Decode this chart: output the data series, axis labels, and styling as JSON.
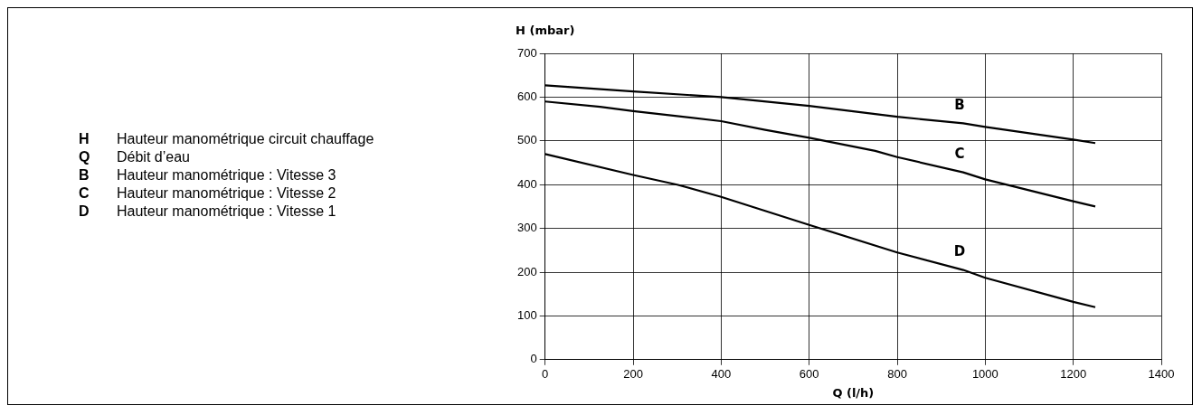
{
  "chart_data": {
    "type": "line",
    "xlabel": "Q (l/h)",
    "ylabel": "H (mbar)",
    "xlim": [
      0,
      1400
    ],
    "xticks": [
      0,
      200,
      400,
      600,
      800,
      1000,
      1200,
      1400
    ],
    "ylim": [
      0,
      700
    ],
    "yticks": [
      0,
      100,
      200,
      300,
      400,
      500,
      600,
      700
    ],
    "grid": true,
    "legend": false,
    "marker": "none",
    "line_style": "solid",
    "annotations": [
      "H Hauteur manométrique circuit chauffage",
      "Q Débit d’eau",
      "B Hauteur manométrique : Vitesse 3",
      "C Hauteur manométrique : Vitesse 2",
      "D Hauteur manométrique : Vitesse 1"
    ],
    "series": [
      {
        "name": "B",
        "color": "#000000",
        "x": [
          0,
          200,
          400,
          600,
          800,
          950,
          1000,
          1200,
          1250
        ],
        "values": [
          627,
          613,
          600,
          580,
          555,
          540,
          532,
          503,
          495
        ]
      },
      {
        "name": "C",
        "color": "#000000",
        "x": [
          0,
          125,
          200,
          400,
          500,
          600,
          750,
          800,
          950,
          1000,
          1200,
          1250
        ],
        "values": [
          590,
          578,
          568,
          545,
          525,
          507,
          477,
          463,
          428,
          412,
          362,
          350
        ]
      },
      {
        "name": "D",
        "color": "#000000",
        "x": [
          0,
          200,
          300,
          400,
          500,
          600,
          800,
          950,
          1000,
          1200,
          1250
        ],
        "values": [
          470,
          422,
          400,
          372,
          340,
          308,
          245,
          205,
          187,
          132,
          120
        ]
      }
    ]
  }
}
